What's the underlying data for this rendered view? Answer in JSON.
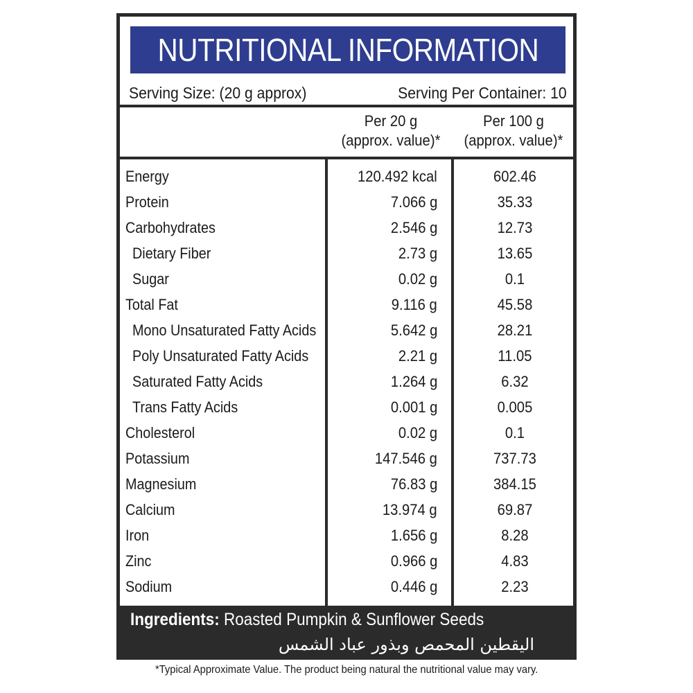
{
  "label": {
    "title": "NUTRITIONAL INFORMATION",
    "serving_size": "Serving Size: (20 g approx)",
    "servings_per_container": "Serving Per Container: 10",
    "columns": {
      "per20_line1": "Per 20 g",
      "per20_line2": "(approx. value)*",
      "per100_line1": "Per 100 g",
      "per100_line2": "(approx. value)*"
    },
    "rows": [
      {
        "name": "Energy",
        "per20": "120.492 kcal",
        "per100": "602.46",
        "sub": false
      },
      {
        "name": "Protein",
        "per20": "7.066 g",
        "per100": "35.33",
        "sub": false
      },
      {
        "name": "Carbohydrates",
        "per20": "2.546 g",
        "per100": "12.73",
        "sub": false
      },
      {
        "name": "Dietary Fiber",
        "per20": "2.73 g",
        "per100": "13.65",
        "sub": true
      },
      {
        "name": "Sugar",
        "per20": "0.02 g",
        "per100": "0.1",
        "sub": true
      },
      {
        "name": "Total Fat",
        "per20": "9.116 g",
        "per100": "45.58",
        "sub": false
      },
      {
        "name": "Mono Unsaturated Fatty Acids",
        "per20": "5.642 g",
        "per100": "28.21",
        "sub": true
      },
      {
        "name": "Poly Unsaturated Fatty Acids",
        "per20": "2.21 g",
        "per100": "11.05",
        "sub": true
      },
      {
        "name": "Saturated Fatty Acids",
        "per20": "1.264 g",
        "per100": "6.32",
        "sub": true
      },
      {
        "name": "Trans Fatty Acids",
        "per20": "0.001 g",
        "per100": "0.005",
        "sub": true
      },
      {
        "name": "Cholesterol",
        "per20": "0.02 g",
        "per100": "0.1",
        "sub": false
      },
      {
        "name": "Potassium",
        "per20": "147.546 g",
        "per100": "737.73",
        "sub": false
      },
      {
        "name": "Magnesium",
        "per20": "76.83 g",
        "per100": "384.15",
        "sub": false
      },
      {
        "name": "Calcium",
        "per20": "13.974 g",
        "per100": "69.87",
        "sub": false
      },
      {
        "name": "Iron",
        "per20": "1.656 g",
        "per100": "8.28",
        "sub": false
      },
      {
        "name": "Zinc",
        "per20": "0.966 g",
        "per100": "4.83",
        "sub": false
      },
      {
        "name": "Sodium",
        "per20": "0.446 g",
        "per100": "2.23",
        "sub": false
      }
    ],
    "ingredients_label": "Ingredients:",
    "ingredients_text": " Roasted Pumpkin & Sunflower Seeds",
    "ingredients_arabic": "اليقطين المحمص وبذور عباد الشمس"
  },
  "footnote": "*Typical Approximate Value. The product being natural the nutritional value may vary.",
  "colors": {
    "title_bar": "#2e3d8f",
    "frame": "#2a2a2a",
    "ingredients_bg": "#2b2b2b"
  }
}
